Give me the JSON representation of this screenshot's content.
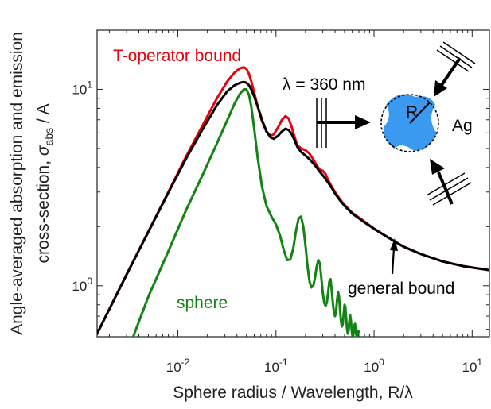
{
  "chart_data": {
    "type": "line",
    "x_scale": "log",
    "y_scale": "log",
    "xlim": [
      0.0015,
      15
    ],
    "ylim": [
      0.55,
      20
    ],
    "grid": false,
    "xlabel": "Sphere radius / Wavelength, R/λ",
    "ylabel": {
      "line1": "Angle-averaged absorption and emission",
      "line2_prefix": "cross-section, ",
      "line2_symbol": "σ",
      "line2_subscript": "abs",
      "line2_suffix": " / A"
    },
    "x_ticks": [
      {
        "value": 0.01,
        "base": "10",
        "exp": "-2"
      },
      {
        "value": 0.1,
        "base": "10",
        "exp": "-1"
      },
      {
        "value": 1,
        "base": "10",
        "exp": "0"
      },
      {
        "value": 10,
        "base": "10",
        "exp": "1"
      }
    ],
    "y_ticks": [
      {
        "value": 1,
        "base": "10",
        "exp": "0"
      },
      {
        "value": 10,
        "base": "10",
        "exp": "1"
      }
    ],
    "series": [
      {
        "name": "T-operator bound",
        "color": "#e8000b",
        "x": [
          0.0015,
          0.003,
          0.005,
          0.008,
          0.012,
          0.018,
          0.025,
          0.032,
          0.038,
          0.043,
          0.047,
          0.05,
          0.053,
          0.056,
          0.06,
          0.065,
          0.072,
          0.08,
          0.088,
          0.095,
          0.105,
          0.115,
          0.125,
          0.135,
          0.145,
          0.155,
          0.165,
          0.18,
          0.2,
          0.22,
          0.24,
          0.26,
          0.28,
          0.3,
          0.32,
          0.34,
          0.37,
          0.4,
          0.45,
          0.5,
          0.6,
          0.8,
          1.0,
          1.5,
          2,
          3,
          5,
          8,
          15
        ],
        "y": [
          0.57,
          1.14,
          1.89,
          3.0,
          4.5,
          6.6,
          9.0,
          11.0,
          12.2,
          12.8,
          12.95,
          12.7,
          12.0,
          11.0,
          9.6,
          8.2,
          6.9,
          6.1,
          5.8,
          5.9,
          6.4,
          7.0,
          7.3,
          7.1,
          6.4,
          5.7,
          5.2,
          5.0,
          4.9,
          4.7,
          4.4,
          4.1,
          3.9,
          3.85,
          3.7,
          3.45,
          3.2,
          3.0,
          2.75,
          2.58,
          2.35,
          2.12,
          1.95,
          1.72,
          1.58,
          1.45,
          1.33,
          1.26,
          1.2
        ]
      },
      {
        "name": "general bound",
        "color": "#000000",
        "x": [
          0.0015,
          0.003,
          0.005,
          0.008,
          0.012,
          0.018,
          0.025,
          0.032,
          0.038,
          0.043,
          0.047,
          0.05,
          0.053,
          0.056,
          0.06,
          0.065,
          0.072,
          0.08,
          0.088,
          0.095,
          0.105,
          0.115,
          0.125,
          0.135,
          0.145,
          0.155,
          0.165,
          0.18,
          0.2,
          0.22,
          0.24,
          0.26,
          0.28,
          0.3,
          0.32,
          0.34,
          0.37,
          0.4,
          0.45,
          0.5,
          0.6,
          0.8,
          1.0,
          1.5,
          2,
          3,
          5,
          8,
          15
        ],
        "y": [
          0.57,
          1.14,
          1.88,
          2.98,
          4.4,
          6.3,
          8.3,
          9.8,
          10.5,
          10.8,
          10.9,
          10.8,
          10.5,
          10.0,
          9.2,
          8.2,
          7.0,
          6.1,
          5.7,
          5.6,
          5.8,
          6.1,
          6.3,
          6.2,
          5.9,
          5.5,
          5.1,
          4.8,
          4.6,
          4.4,
          4.2,
          4.0,
          3.8,
          3.65,
          3.5,
          3.35,
          3.15,
          2.95,
          2.72,
          2.55,
          2.33,
          2.1,
          1.95,
          1.72,
          1.58,
          1.45,
          1.33,
          1.26,
          1.2
        ]
      },
      {
        "name": "sphere",
        "color": "#138313",
        "x": [
          0.0035,
          0.005,
          0.008,
          0.012,
          0.018,
          0.025,
          0.032,
          0.038,
          0.043,
          0.047,
          0.05,
          0.053,
          0.056,
          0.06,
          0.065,
          0.072,
          0.08,
          0.09,
          0.1,
          0.11,
          0.12,
          0.13,
          0.14,
          0.15,
          0.16,
          0.17,
          0.18,
          0.19,
          0.2,
          0.21,
          0.22,
          0.23,
          0.24,
          0.25,
          0.26,
          0.27,
          0.28,
          0.29,
          0.3,
          0.31,
          0.32,
          0.33,
          0.34,
          0.35,
          0.36,
          0.37,
          0.38,
          0.39,
          0.4,
          0.41,
          0.42,
          0.43,
          0.44,
          0.45,
          0.46,
          0.47,
          0.48,
          0.49,
          0.5,
          0.51,
          0.52,
          0.53,
          0.54,
          0.55,
          0.56,
          0.57,
          0.58,
          0.59,
          0.6,
          0.61,
          0.62,
          0.63,
          0.64,
          0.65,
          0.66,
          0.67,
          0.68,
          0.69,
          0.7
        ],
        "y": [
          0.55,
          0.88,
          1.5,
          2.4,
          3.7,
          5.3,
          7.0,
          8.5,
          9.5,
          10.0,
          10.0,
          9.4,
          8.2,
          6.3,
          4.5,
          3.2,
          2.55,
          2.25,
          2.05,
          1.8,
          1.52,
          1.35,
          1.36,
          1.55,
          1.9,
          2.2,
          2.25,
          2.0,
          1.6,
          1.25,
          1.05,
          0.98,
          1.0,
          1.1,
          1.25,
          1.35,
          1.3,
          1.1,
          0.92,
          0.82,
          0.79,
          0.82,
          0.92,
          1.05,
          1.08,
          0.95,
          0.82,
          0.73,
          0.7,
          0.74,
          0.85,
          0.93,
          0.88,
          0.75,
          0.66,
          0.62,
          0.64,
          0.72,
          0.8,
          0.78,
          0.68,
          0.6,
          0.57,
          0.59,
          0.66,
          0.71,
          0.67,
          0.6,
          0.56,
          0.55,
          0.58,
          0.63,
          0.64,
          0.59,
          0.56,
          0.55,
          0.57,
          0.59,
          0.58
        ]
      }
    ],
    "annotations": [
      {
        "key": "toperator",
        "text": "T-operator bound",
        "color": "#e8000b"
      },
      {
        "key": "general",
        "text": "general bound",
        "color": "#000000"
      },
      {
        "key": "sphere",
        "text": "sphere",
        "color": "#138313"
      },
      {
        "key": "wavelength",
        "text": "λ = 360 nm",
        "color": "#000000"
      },
      {
        "key": "radius",
        "text": "R",
        "color": "#000000"
      },
      {
        "key": "material",
        "text": "Ag",
        "color": "#000000"
      }
    ],
    "inset": {
      "particle_fill": "#3a9af0",
      "sphere_outline": "dashed"
    }
  }
}
